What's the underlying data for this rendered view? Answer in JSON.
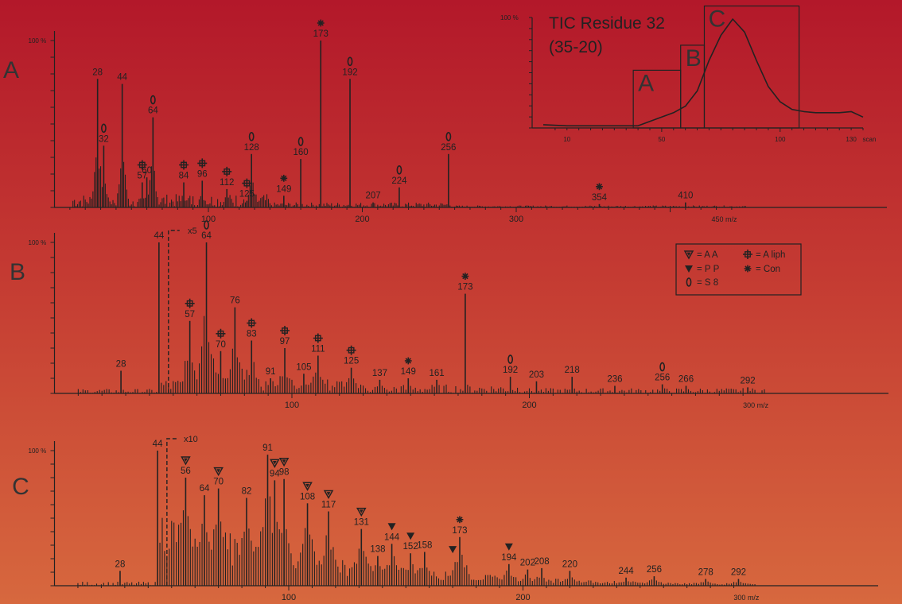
{
  "chart_data": [
    {
      "panel": "A",
      "type": "bar",
      "xlabel": "m/z",
      "xlim": [
        0,
        450
      ],
      "ylim": [
        0,
        100
      ],
      "y_top_label": "100 %",
      "x_ticks": [
        "100",
        "200",
        "300",
        "450 m/z"
      ],
      "peaks": [
        {
          "mz": 28,
          "y": 77,
          "label": "28"
        },
        {
          "mz": 32,
          "y": 37,
          "label": "32",
          "marker": "S8"
        },
        {
          "mz": 44,
          "y": 74,
          "label": "44"
        },
        {
          "mz": 57,
          "y": 15,
          "label": "57",
          "marker": "Aliph"
        },
        {
          "mz": 60,
          "y": 18,
          "label": "60"
        },
        {
          "mz": 64,
          "y": 54,
          "label": "64",
          "marker": "S8"
        },
        {
          "mz": 84,
          "y": 15,
          "label": "84",
          "marker": "Aliph"
        },
        {
          "mz": 96,
          "y": 16,
          "label": "96",
          "marker": "Aliph"
        },
        {
          "mz": 112,
          "y": 11,
          "label": "112",
          "marker": "Aliph"
        },
        {
          "mz": 125,
          "y": 4,
          "label": "125",
          "marker": "Aliph"
        },
        {
          "mz": 128,
          "y": 32,
          "label": "128",
          "marker": "S8"
        },
        {
          "mz": 149,
          "y": 7,
          "label": "149",
          "marker": "Con"
        },
        {
          "mz": 160,
          "y": 29,
          "label": "160",
          "marker": "S8"
        },
        {
          "mz": 173,
          "y": 100,
          "label": "173",
          "marker": "Con"
        },
        {
          "mz": 192,
          "y": 77,
          "label": "192",
          "marker": "S8"
        },
        {
          "mz": 207,
          "y": 3,
          "label": "207"
        },
        {
          "mz": 224,
          "y": 12,
          "label": "224",
          "marker": "S8"
        },
        {
          "mz": 256,
          "y": 32,
          "label": "256",
          "marker": "S8"
        },
        {
          "mz": 354,
          "y": 2,
          "label": "354",
          "marker": "Con"
        },
        {
          "mz": 410,
          "y": 3,
          "label": "410"
        }
      ]
    },
    {
      "panel": "B",
      "type": "bar",
      "xlabel": "m/z",
      "xlim": [
        0,
        300
      ],
      "ylim": [
        0,
        100
      ],
      "y_top_label": "100 %",
      "x_ticks": [
        "100",
        "200",
        "300 m/z"
      ],
      "break_label": "x5",
      "peaks": [
        {
          "mz": 28,
          "y": 15,
          "label": "28"
        },
        {
          "mz": 44,
          "y": 100,
          "label": "44"
        },
        {
          "mz": 57,
          "y": 48,
          "label": "57",
          "marker": "Aliph"
        },
        {
          "mz": 64,
          "y": 100,
          "label": "64",
          "marker": "S8"
        },
        {
          "mz": 70,
          "y": 28,
          "label": "70",
          "marker": "Aliph"
        },
        {
          "mz": 76,
          "y": 57,
          "label": "76"
        },
        {
          "mz": 83,
          "y": 35,
          "label": "83",
          "marker": "Aliph"
        },
        {
          "mz": 91,
          "y": 10,
          "label": "91"
        },
        {
          "mz": 97,
          "y": 30,
          "label": "97",
          "marker": "Aliph"
        },
        {
          "mz": 105,
          "y": 13,
          "label": "105"
        },
        {
          "mz": 111,
          "y": 25,
          "label": "111",
          "marker": "Aliph"
        },
        {
          "mz": 125,
          "y": 17,
          "label": "125",
          "marker": "Aliph"
        },
        {
          "mz": 137,
          "y": 9,
          "label": "137"
        },
        {
          "mz": 149,
          "y": 10,
          "label": "149",
          "marker": "Con"
        },
        {
          "mz": 161,
          "y": 9,
          "label": "161"
        },
        {
          "mz": 173,
          "y": 66,
          "label": "173",
          "marker": "Con"
        },
        {
          "mz": 192,
          "y": 11,
          "label": "192",
          "marker": "S8"
        },
        {
          "mz": 203,
          "y": 8,
          "label": "203"
        },
        {
          "mz": 218,
          "y": 11,
          "label": "218"
        },
        {
          "mz": 236,
          "y": 5,
          "label": "236"
        },
        {
          "mz": 256,
          "y": 6,
          "label": "256",
          "marker": "S8"
        },
        {
          "mz": 266,
          "y": 5,
          "label": "266"
        },
        {
          "mz": 292,
          "y": 4,
          "label": "292"
        }
      ]
    },
    {
      "panel": "C",
      "type": "bar",
      "xlabel": "m/z",
      "xlim": [
        0,
        300
      ],
      "ylim": [
        0,
        100
      ],
      "y_top_label": "100 %",
      "x_ticks": [
        "100",
        "200",
        "300 m/z"
      ],
      "break_label": "x10",
      "peaks": [
        {
          "mz": 28,
          "y": 11,
          "label": "28"
        },
        {
          "mz": 44,
          "y": 100,
          "label": "44"
        },
        {
          "mz": 56,
          "y": 80,
          "label": "56",
          "marker": "AA"
        },
        {
          "mz": 64,
          "y": 67,
          "label": "64"
        },
        {
          "mz": 70,
          "y": 72,
          "label": "70",
          "marker": "AA"
        },
        {
          "mz": 82,
          "y": 65,
          "label": "82"
        },
        {
          "mz": 91,
          "y": 97,
          "label": "91"
        },
        {
          "mz": 94,
          "y": 78,
          "label": "94",
          "marker": "AA"
        },
        {
          "mz": 98,
          "y": 79,
          "label": "98",
          "marker": "AA"
        },
        {
          "mz": 108,
          "y": 61,
          "label": "108",
          "marker": "AA"
        },
        {
          "mz": 117,
          "y": 55,
          "label": "117",
          "marker": "AA"
        },
        {
          "mz": 131,
          "y": 42,
          "label": "131",
          "marker": "AA"
        },
        {
          "mz": 138,
          "y": 22,
          "label": "138"
        },
        {
          "mz": 144,
          "y": 31,
          "label": "144",
          "marker": "PP"
        },
        {
          "mz": 152,
          "y": 24,
          "label": "152",
          "marker": "PP"
        },
        {
          "mz": 158,
          "y": 25,
          "label": "158"
        },
        {
          "mz": 173,
          "y": 36,
          "label": "173",
          "marker": "Con"
        },
        {
          "mz": 194,
          "y": 16,
          "label": "194",
          "marker": "PP"
        },
        {
          "mz": 202,
          "y": 12,
          "label": "202"
        },
        {
          "mz": 208,
          "y": 13,
          "label": "208"
        },
        {
          "mz": 220,
          "y": 11,
          "label": "220"
        },
        {
          "mz": 244,
          "y": 6,
          "label": "244"
        },
        {
          "mz": 256,
          "y": 7,
          "label": "256"
        },
        {
          "mz": 278,
          "y": 5,
          "label": "278"
        },
        {
          "mz": 292,
          "y": 5,
          "label": "292"
        }
      ],
      "extra_markers": [
        {
          "mz": 170,
          "marker": "PP"
        }
      ]
    },
    {
      "panel": "inset",
      "type": "line",
      "title": "TIC Residue  32",
      "subtitle": "(35-20)",
      "xlabel": "scan",
      "xlim": [
        0,
        135
      ],
      "ylim": [
        0,
        100
      ],
      "y_top_label": "100 %",
      "x_ticks": [
        "10",
        "50",
        "100",
        "130",
        "scan"
      ],
      "x": [
        0,
        10,
        20,
        30,
        40,
        45,
        50,
        55,
        60,
        65,
        70,
        75,
        80,
        85,
        90,
        95,
        100,
        105,
        110,
        115,
        120,
        125,
        130,
        135
      ],
      "y": [
        3,
        2,
        2,
        2,
        2,
        6,
        10,
        14,
        20,
        34,
        62,
        85,
        100,
        88,
        62,
        38,
        24,
        17,
        15,
        14,
        14,
        14,
        15,
        10
      ],
      "regions": [
        {
          "label": "A",
          "x0": 38,
          "x1": 58,
          "y_top": 53
        },
        {
          "label": "B",
          "x0": 58,
          "x1": 68,
          "y_top": 76
        },
        {
          "label": "C",
          "x0": 68,
          "x1": 108,
          "y_top": 112
        }
      ]
    }
  ],
  "legend": [
    {
      "symbol": "open-triangle",
      "label": "= A A"
    },
    {
      "symbol": "aliph",
      "label": "= A liph"
    },
    {
      "symbol": "filled-triangle",
      "label": "= P P"
    },
    {
      "symbol": "con",
      "label": "=  Con"
    },
    {
      "symbol": "s8",
      "label": "= S 8"
    }
  ]
}
